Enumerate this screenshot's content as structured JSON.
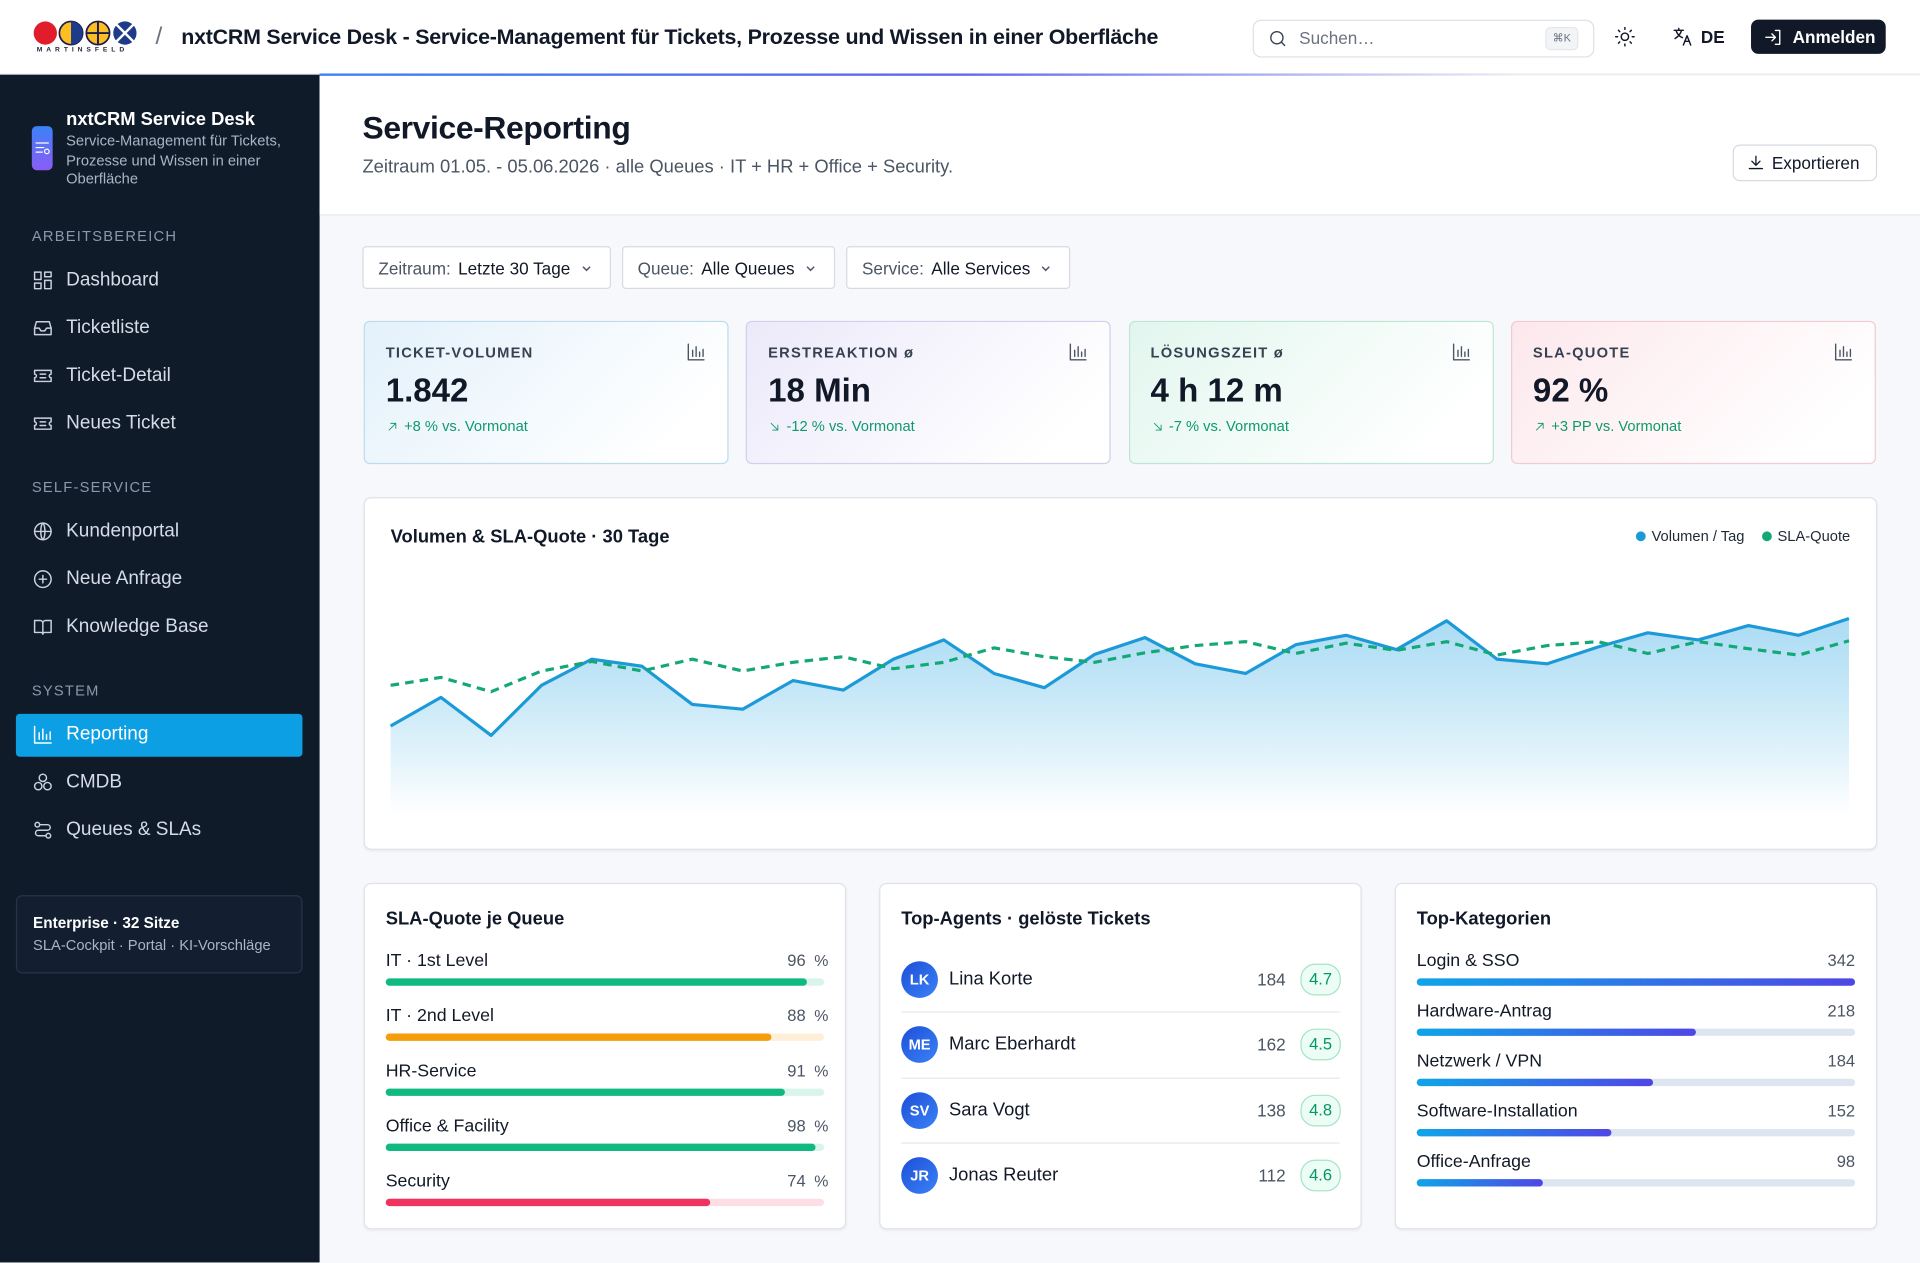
{
  "header": {
    "logo_text": "MARTINSFELD",
    "separator": "/",
    "title": "nxtCRM Service Desk - Service-Management für Tickets, Prozesse und Wissen in einer Oberfläche",
    "search_placeholder": "Suchen…",
    "search_shortcut": "⌘K",
    "language": "DE",
    "login": "Anmelden"
  },
  "sidebar": {
    "brand": {
      "title": "nxtCRM Service Desk",
      "subtitle": "Service-Management für Tickets, Prozesse und Wissen in einer Oberfläche"
    },
    "sections": [
      {
        "title": "ARBEITSBEREICH",
        "items": [
          {
            "label": "Dashboard",
            "icon": "grid"
          },
          {
            "label": "Ticketliste",
            "icon": "inbox"
          },
          {
            "label": "Ticket-Detail",
            "icon": "ticket"
          },
          {
            "label": "Neues Ticket",
            "icon": "ticket"
          }
        ]
      },
      {
        "title": "SELF-SERVICE",
        "items": [
          {
            "label": "Kundenportal",
            "icon": "globe"
          },
          {
            "label": "Neue Anfrage",
            "icon": "plus"
          },
          {
            "label": "Knowledge Base",
            "icon": "book"
          }
        ]
      },
      {
        "title": "SYSTEM",
        "items": [
          {
            "label": "Reporting",
            "icon": "chart",
            "active": true
          },
          {
            "label": "CMDB",
            "icon": "boxes"
          },
          {
            "label": "Queues & SLAs",
            "icon": "route"
          }
        ]
      }
    ],
    "footer": {
      "title": "Enterprise · 32 Sitze",
      "subtitle": "SLA-Cockpit · Portal · KI-Vorschläge"
    }
  },
  "page": {
    "title": "Service-Reporting",
    "subtitle": "Zeitraum 01.05. - 05.06.2026 · alle Queues · IT + HR + Office + Security.",
    "export": "Exportieren"
  },
  "filters": [
    {
      "label": "Zeitraum:",
      "value": "Letzte 30 Tage"
    },
    {
      "label": "Queue:",
      "value": "Alle Queues"
    },
    {
      "label": "Service:",
      "value": "Alle Services"
    }
  ],
  "kpis": [
    {
      "label": "TICKET-VOLUMEN",
      "value": "1.842",
      "delta": "+8 % vs. Vormonat",
      "trend": "up",
      "tint": "#e3f1fb",
      "border": "#bcdcee"
    },
    {
      "label": "ERSTREAKTION ø",
      "value": "18 Min",
      "delta": "-12 % vs. Vormonat",
      "trend": "down",
      "tint": "#ece9fa",
      "border": "#d2cfee"
    },
    {
      "label": "LÖSUNGSZEIT ø",
      "value": "4 h 12 m",
      "delta": "-7 % vs. Vormonat",
      "trend": "down",
      "tint": "#e2f6ee",
      "border": "#bfe6d5"
    },
    {
      "label": "SLA-QUOTE",
      "value": "92 %",
      "delta": "+3 PP vs. Vormonat",
      "trend": "up",
      "tint": "#fce8ec",
      "border": "#f2cad1"
    }
  ],
  "chart_data": {
    "type": "line",
    "title": "Volumen & SLA-Quote · 30 Tage",
    "legend": "top-right",
    "area": true,
    "ylim": [
      0,
      100
    ],
    "y2lim": [
      70,
      100
    ],
    "series": [
      {
        "name": "Volumen / Tag",
        "color": "#1c9ad8",
        "values": [
          37,
          49,
          33,
          54,
          65,
          62,
          46,
          44,
          56,
          52,
          65,
          73,
          59,
          53,
          67,
          74,
          63,
          59,
          71,
          75,
          69,
          81,
          65,
          63,
          70,
          76,
          73,
          79,
          75,
          82
        ]
      },
      {
        "name": "SLA-Quote",
        "color": "#14a877",
        "axis": "y2",
        "dash": true,
        "values": [
          86.2,
          87.2,
          85.4,
          88,
          89.2,
          88,
          89.5,
          88,
          89.1,
          89.8,
          88.3,
          89.1,
          90.9,
          89.8,
          89.1,
          90.3,
          91.2,
          91.7,
          90.2,
          91.5,
          90.6,
          91.7,
          90,
          91.2,
          91.7,
          90.2,
          91.7,
          90.8,
          90,
          91.8
        ]
      }
    ]
  },
  "sla_by_queue": {
    "title": "SLA-Quote je Queue",
    "unit": "%",
    "rows": [
      {
        "label": "IT · 1st Level",
        "value": 96,
        "color": "#10b97f"
      },
      {
        "label": "IT · 2nd Level",
        "value": 88,
        "color": "#f59e0b"
      },
      {
        "label": "HR-Service",
        "value": 91,
        "color": "#10b97f"
      },
      {
        "label": "Office & Facility",
        "value": 98,
        "color": "#10b97f"
      },
      {
        "label": "Security",
        "value": 74,
        "color": "#f0325e"
      }
    ]
  },
  "top_agents": {
    "title": "Top-Agents · gelöste Tickets",
    "rows": [
      {
        "initials": "LK",
        "name": "Lina Korte",
        "count": 184,
        "rating": 4.7
      },
      {
        "initials": "ME",
        "name": "Marc Eberhardt",
        "count": 162,
        "rating": 4.5
      },
      {
        "initials": "SV",
        "name": "Sara Vogt",
        "count": 138,
        "rating": 4.8
      },
      {
        "initials": "JR",
        "name": "Jonas Reuter",
        "count": 112,
        "rating": 4.6
      }
    ]
  },
  "top_categories": {
    "title": "Top-Kategorien",
    "rows": [
      {
        "label": "Login & SSO",
        "value": 342
      },
      {
        "label": "Hardware-Antrag",
        "value": 218
      },
      {
        "label": "Netzwerk / VPN",
        "value": 184
      },
      {
        "label": "Software-Installation",
        "value": 152
      },
      {
        "label": "Office-Anfrage",
        "value": 98
      }
    ]
  }
}
